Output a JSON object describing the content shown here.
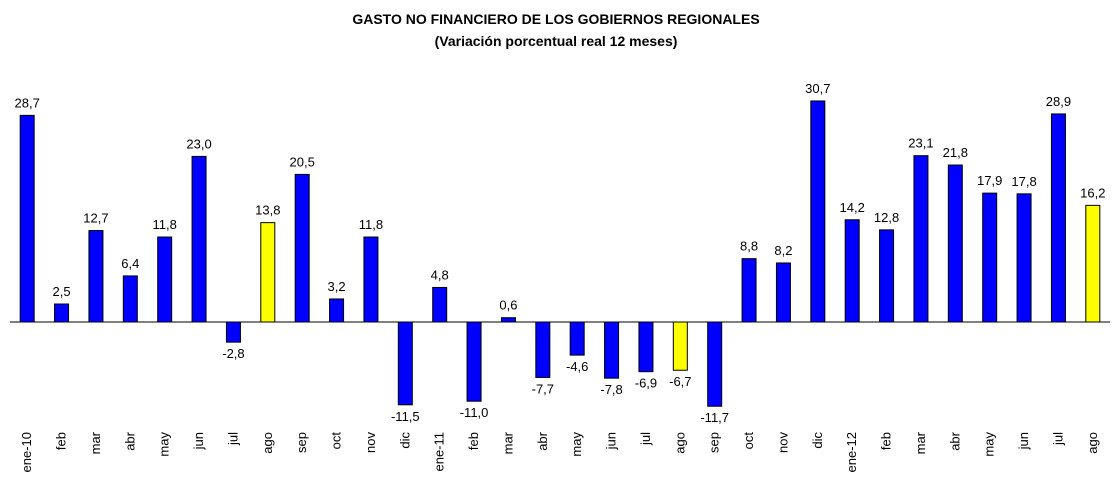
{
  "chart_data": {
    "type": "bar",
    "title": "GASTO NO FINANCIERO DE LOS GOBIERNOS REGIONALES",
    "subtitle": "(Variación porcentual real 12 meses)",
    "categories": [
      "ene-10",
      "feb",
      "mar",
      "abr",
      "may",
      "jun",
      "jul",
      "ago",
      "sep",
      "oct",
      "nov",
      "dic",
      "ene-11",
      "feb",
      "mar",
      "abr",
      "may",
      "jun",
      "jul",
      "ago",
      "sep",
      "oct",
      "nov",
      "dic",
      "ene-12",
      "feb",
      "mar",
      "abr",
      "may",
      "jun",
      "jul",
      "ago"
    ],
    "values": [
      28.7,
      2.5,
      12.7,
      6.4,
      11.8,
      23.0,
      -2.8,
      13.8,
      20.5,
      3.2,
      11.8,
      -11.5,
      4.8,
      -11.0,
      0.6,
      -7.7,
      -4.6,
      -7.8,
      -6.9,
      -6.7,
      -11.7,
      8.8,
      8.2,
      30.7,
      14.2,
      12.8,
      23.1,
      21.8,
      17.9,
      17.8,
      28.9,
      16.2
    ],
    "value_labels": [
      "28,7",
      "2,5",
      "12,7",
      "6,4",
      "11,8",
      "23,0",
      "-2,8",
      "13,8",
      "20,5",
      "3,2",
      "11,8",
      "-11,5",
      "4,8",
      "-11,0",
      "0,6",
      "-7,7",
      "-4,6",
      "-7,8",
      "-6,9",
      "-6,7",
      "-11,7",
      "8,8",
      "8,2",
      "30,7",
      "14,2",
      "12,8",
      "23,1",
      "21,8",
      "17,9",
      "17,8",
      "28,9",
      "16,2"
    ],
    "colors": [
      "#0000ff",
      "#0000ff",
      "#0000ff",
      "#0000ff",
      "#0000ff",
      "#0000ff",
      "#0000ff",
      "#ffff00",
      "#0000ff",
      "#0000ff",
      "#0000ff",
      "#0000ff",
      "#0000ff",
      "#0000ff",
      "#0000ff",
      "#0000ff",
      "#0000ff",
      "#0000ff",
      "#0000ff",
      "#ffff00",
      "#0000ff",
      "#0000ff",
      "#0000ff",
      "#0000ff",
      "#0000ff",
      "#0000ff",
      "#0000ff",
      "#0000ff",
      "#0000ff",
      "#0000ff",
      "#0000ff",
      "#ffff00"
    ],
    "ylim": [
      -15,
      35
    ]
  }
}
